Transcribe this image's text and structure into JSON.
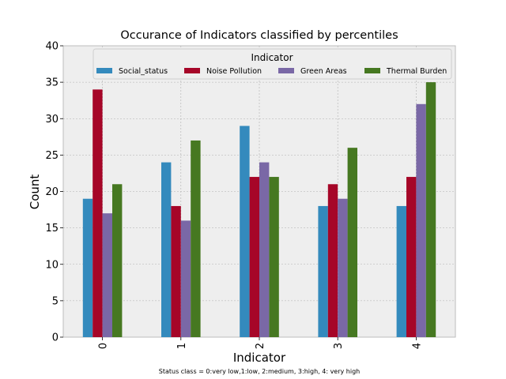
{
  "chart_data": {
    "type": "bar",
    "title": "Occurance of Indicators classified by percentiles",
    "xlabel": "Indicator",
    "ylabel": "Count",
    "caption": "Status class = 0:very low,1:low, 2:medium, 3:high, 4: very high",
    "categories": [
      "0",
      "1",
      "2",
      "3",
      "4"
    ],
    "yticks": [
      "0",
      "5",
      "10",
      "15",
      "20",
      "25",
      "30",
      "35",
      "40"
    ],
    "ylim": [
      0,
      40
    ],
    "grid": true,
    "legend": {
      "title": "Indicator",
      "placement": "top"
    },
    "series": [
      {
        "name": "Social_status",
        "color": "#348abd",
        "values": [
          19,
          24,
          29,
          18,
          18
        ]
      },
      {
        "name": "Noise Pollution",
        "color": "#a60628",
        "values": [
          34,
          18,
          22,
          21,
          22
        ]
      },
      {
        "name": "Green Areas",
        "color": "#7a68a6",
        "values": [
          17,
          16,
          24,
          19,
          32
        ]
      },
      {
        "name": "Thermal Burden",
        "color": "#467821",
        "values": [
          21,
          27,
          22,
          26,
          35
        ]
      }
    ]
  }
}
